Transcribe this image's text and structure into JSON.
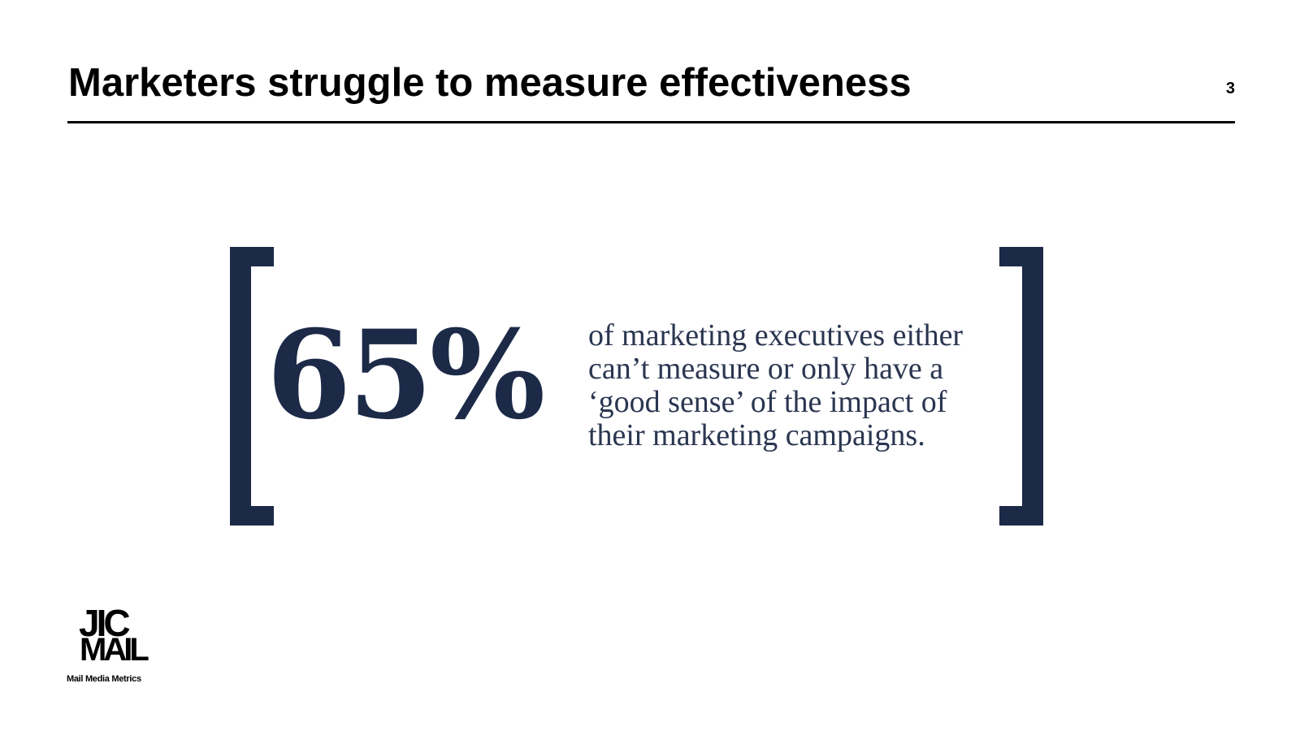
{
  "slide": {
    "title": "Marketers struggle to measure effectiveness",
    "page_number": "3"
  },
  "statistic": {
    "value": "65%",
    "description_lines": [
      "of marketing executives either",
      "can’t measure or only have a",
      "‘good sense’ of the impact of",
      "their marketing campaigns."
    ]
  },
  "logo": {
    "top": "JIC",
    "bottom": "MAIL",
    "tagline": "Mail Media Metrics"
  },
  "colors": {
    "accent_navy": "#1c2a48",
    "text": "#000000",
    "background": "#ffffff"
  }
}
